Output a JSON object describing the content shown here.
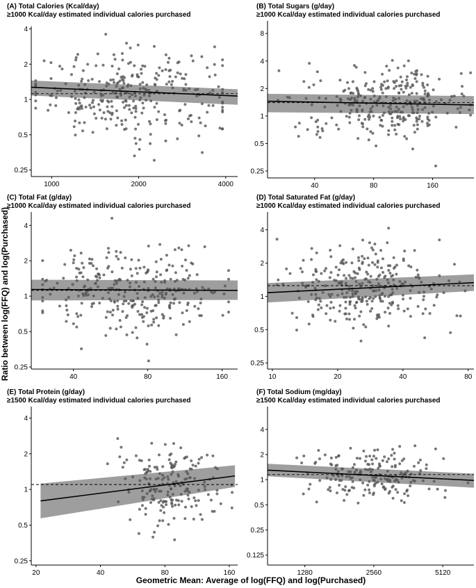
{
  "figure": {
    "xlabel": "Geometric Mean: Average of log(FFQ) and log(Purchased)",
    "ylabel": "Ratio between log(FFQ) and log(Purchased)"
  },
  "chart_data": [
    {
      "type": "scatter",
      "title": "(A) Total Calories (Kcal/day)",
      "subtitle": "≥1000 Kcal/day estimated individual calories purchased",
      "xscale": "log",
      "yscale": "log",
      "xlim": [
        850,
        4400
      ],
      "ylim": [
        0.22,
        4.2
      ],
      "xticks": [
        1000,
        2000,
        4000
      ],
      "yticks": [
        0.25,
        0.5,
        1,
        2,
        4
      ],
      "reference_line": 1.12,
      "fit": {
        "x": [
          850,
          4400
        ],
        "y": [
          1.27,
          1.07
        ],
        "ci_low": [
          1.08,
          0.9
        ],
        "ci_high": [
          1.45,
          1.22
        ]
      },
      "n_points": 300,
      "x_center": 1900,
      "x_spread": 0.85,
      "y_spread": 0.95,
      "x_min": 880,
      "x_max": 3900,
      "y_min": 0.24,
      "y_max": 3.6
    },
    {
      "type": "scatter",
      "title": "(B) Total Sugars (g/day)",
      "subtitle": "≥1000 Kcal/day estimated individual calories purchased",
      "xscale": "log",
      "yscale": "log",
      "xlim": [
        23,
        260
      ],
      "ylim": [
        0.21,
        11
      ],
      "xticks": [
        40,
        80,
        160
      ],
      "yticks": [
        0.25,
        0.5,
        1,
        2,
        4,
        8
      ],
      "reference_line": 1.4,
      "fit": {
        "x": [
          23,
          260
        ],
        "y": [
          1.45,
          1.32
        ],
        "ci_low": [
          1.1,
          1.05
        ],
        "ci_high": [
          1.75,
          1.65
        ]
      },
      "n_points": 300,
      "x_center": 92,
      "x_spread": 1.05,
      "y_spread": 1.0,
      "x_min": 26,
      "x_max": 250,
      "y_min": 0.24,
      "y_max": 9.0
    },
    {
      "type": "scatter",
      "title": "(C) Total Fat (g/day)",
      "subtitle": "≥1000 Kcal/day estimated individual calories purchased",
      "xscale": "log",
      "yscale": "log",
      "xlim": [
        27,
        185
      ],
      "ylim": [
        0.24,
        5.2
      ],
      "xticks": [
        40,
        80,
        160
      ],
      "yticks": [
        0.25,
        0.5,
        1,
        2,
        4
      ],
      "reference_line": 1.12,
      "fit": {
        "x": [
          27,
          185
        ],
        "y": [
          1.14,
          1.12
        ],
        "ci_low": [
          0.92,
          0.93
        ],
        "ci_high": [
          1.38,
          1.36
        ]
      },
      "n_points": 300,
      "x_center": 72,
      "x_spread": 0.95,
      "y_spread": 0.95,
      "x_min": 30,
      "x_max": 170,
      "y_min": 0.27,
      "y_max": 4.6
    },
    {
      "type": "scatter",
      "title": "(D) Total Saturated Fat (g/day)",
      "subtitle": "≥1000 Kcal/day estimated individual calories purchased",
      "xscale": "log",
      "yscale": "log",
      "xlim": [
        9.5,
        85
      ],
      "ylim": [
        0.22,
        5.8
      ],
      "xticks": [
        10,
        20,
        40,
        80
      ],
      "yticks": [
        0.25,
        0.5,
        1,
        2,
        4
      ],
      "reference_line": 1.25,
      "fit": {
        "x": [
          9.5,
          85
        ],
        "y": [
          1.08,
          1.33
        ],
        "ci_low": [
          0.88,
          1.12
        ],
        "ci_high": [
          1.32,
          1.58
        ]
      },
      "n_points": 300,
      "x_center": 27,
      "x_spread": 0.95,
      "y_spread": 1.0,
      "x_min": 10.5,
      "x_max": 80,
      "y_min": 0.24,
      "y_max": 4.8
    },
    {
      "type": "scatter",
      "title": "(E) Total Protein (g/day)",
      "subtitle": "≥1500 Kcal/day estimated individual calories purchased",
      "xscale": "log",
      "yscale": "log",
      "xlim": [
        19,
        175
      ],
      "ylim": [
        0.23,
        5.0
      ],
      "xticks": [
        20,
        40,
        80,
        160
      ],
      "yticks": [
        0.25,
        0.5,
        1,
        2,
        4
      ],
      "reference_line": 1.1,
      "fit": {
        "x": [
          21,
          170
        ],
        "y": [
          0.8,
          1.3
        ],
        "ci_low": [
          0.57,
          1.05
        ],
        "ci_high": [
          1.12,
          1.6
        ]
      },
      "n_points": 190,
      "x_center": 84,
      "x_spread": 0.55,
      "y_spread": 0.85,
      "x_min": 21,
      "x_max": 165,
      "y_min": 0.26,
      "y_max": 4.0
    },
    {
      "type": "scatter",
      "title": "(F) Total Sodium (mg/day)",
      "subtitle": "≥1500 Kcal/day estimated individual calories purchased",
      "xscale": "log",
      "yscale": "log",
      "xlim": [
        880,
        7000
      ],
      "ylim": [
        0.095,
        7.5
      ],
      "xticks": [
        1280,
        2560,
        5120
      ],
      "yticks": [
        0.125,
        0.25,
        0.5,
        1,
        2,
        4
      ],
      "reference_line": 1.15,
      "fit": {
        "x": [
          880,
          7000
        ],
        "y": [
          1.3,
          0.98
        ],
        "ci_low": [
          1.1,
          0.8
        ],
        "ci_high": [
          1.55,
          1.18
        ]
      },
      "n_points": 190,
      "x_center": 2500,
      "x_spread": 0.7,
      "y_spread": 0.9,
      "x_min": 940,
      "x_max": 6600,
      "y_min": 0.12,
      "y_max": 4.6
    }
  ],
  "colors": {
    "point": "#555555",
    "band": "#9e9e9e",
    "fit": "#000000",
    "ref": "#000000"
  }
}
